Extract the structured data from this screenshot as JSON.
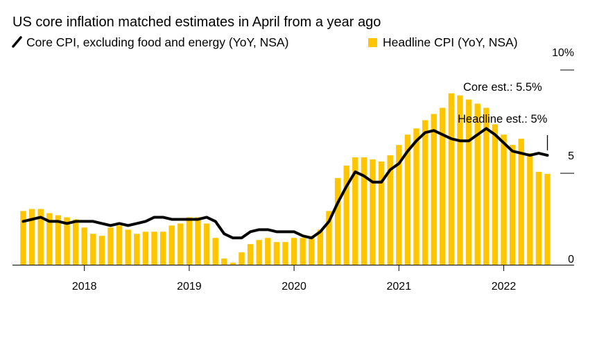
{
  "chart_data": {
    "type": "bar",
    "title": "US core inflation matched estimates in April from a year ago",
    "series": [
      {
        "name": "Core CPI, excluding food and energy (YoY, NSA)",
        "type": "line",
        "color": "#000000",
        "values": [
          2.1,
          2.2,
          2.3,
          2.1,
          2.1,
          2.0,
          2.1,
          2.1,
          2.1,
          2.0,
          1.9,
          2.0,
          1.9,
          2.0,
          2.1,
          2.3,
          2.3,
          2.2,
          2.2,
          2.2,
          2.2,
          2.3,
          2.1,
          1.5,
          1.3,
          1.3,
          1.6,
          1.7,
          1.7,
          1.6,
          1.6,
          1.6,
          1.4,
          1.3,
          1.6,
          2.1,
          3.0,
          3.8,
          4.5,
          4.3,
          4.0,
          4.0,
          4.6,
          4.9,
          5.5,
          6.0,
          6.4,
          6.5,
          6.3,
          6.1,
          6.0,
          6.0,
          6.3,
          6.6,
          6.3,
          5.9,
          5.5,
          5.4,
          5.3,
          5.4,
          5.3
        ]
      },
      {
        "name": "Headline CPI (YoY, NSA)",
        "type": "bar",
        "color": "#ffc600",
        "values": [
          2.6,
          2.7,
          2.7,
          2.5,
          2.4,
          2.3,
          2.2,
          1.8,
          1.5,
          1.4,
          1.8,
          1.9,
          1.7,
          1.5,
          1.6,
          1.6,
          1.6,
          1.9,
          2.0,
          2.3,
          2.3,
          2.0,
          1.3,
          0.3,
          0.1,
          0.6,
          1.0,
          1.2,
          1.3,
          1.1,
          1.1,
          1.3,
          1.3,
          1.4,
          1.7,
          2.6,
          4.2,
          4.8,
          5.2,
          5.2,
          5.1,
          5.0,
          5.3,
          5.8,
          6.3,
          6.6,
          7.0,
          7.3,
          7.6,
          8.3,
          8.2,
          8.0,
          7.8,
          7.6,
          6.8,
          6.3,
          5.8,
          6.1,
          5.4,
          4.5,
          4.4
        ]
      }
    ],
    "y_ticks": [
      {
        "value": 10,
        "label": "10%"
      },
      {
        "value": 5,
        "label": "5"
      },
      {
        "value": 0,
        "label": "0"
      }
    ],
    "ylim": [
      0,
      10
    ],
    "x_ticks": [
      {
        "index": 7,
        "label": "2018"
      },
      {
        "index": 19,
        "label": "2019"
      },
      {
        "index": 31,
        "label": "2020"
      },
      {
        "index": 43,
        "label": "2021"
      },
      {
        "index": 55,
        "label": "2022"
      }
    ],
    "annotations": [
      {
        "text": "Core est.: 5.5%",
        "value": 5.5
      },
      {
        "text": "Headline est.: 5%",
        "value": 5.0
      }
    ],
    "legend_position": "top",
    "grid": false
  }
}
